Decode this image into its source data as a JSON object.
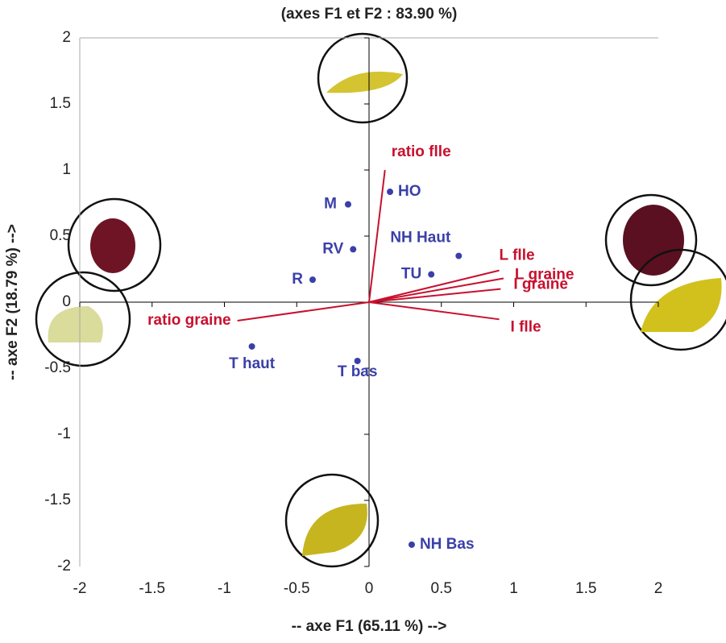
{
  "chart_data": {
    "type": "biplot",
    "title": "(axes F1 et F2 : 83.90 %)",
    "xlabel": "-- axe F1 (65.11 %) -->",
    "ylabel": "-- axe F2 (18.79 %) -->",
    "xlim": [
      -2,
      2
    ],
    "ylim": [
      -2,
      2
    ],
    "xticks": [
      -2,
      -1.5,
      -1,
      -0.5,
      0,
      0.5,
      1,
      1.5,
      2
    ],
    "yticks": [
      -2,
      -1.5,
      -1,
      -0.5,
      0,
      0.5,
      1,
      1.5,
      2
    ],
    "points": {
      "color": "#3a3fa8",
      "labels": [
        "HO",
        "M",
        "NH Haut",
        "RV",
        "TU",
        "R",
        "T haut",
        "T bas",
        "NH Bas"
      ],
      "x": [
        0.145,
        -0.145,
        0.62,
        -0.11,
        0.43,
        -0.39,
        -0.81,
        -0.08,
        0.295
      ],
      "y": [
        0.835,
        0.74,
        0.35,
        0.4,
        0.21,
        0.17,
        -0.335,
        -0.445,
        -1.835
      ]
    },
    "vectors": {
      "color": "#c8102e",
      "labels": [
        "ratio flle",
        "L flle",
        "L graine",
        "I graine",
        "I flle",
        "ratio graine"
      ],
      "x": [
        0.11,
        0.9,
        0.93,
        0.91,
        0.9,
        -0.91
      ],
      "y": [
        1.0,
        0.24,
        0.18,
        0.1,
        -0.13,
        -0.14
      ]
    }
  }
}
